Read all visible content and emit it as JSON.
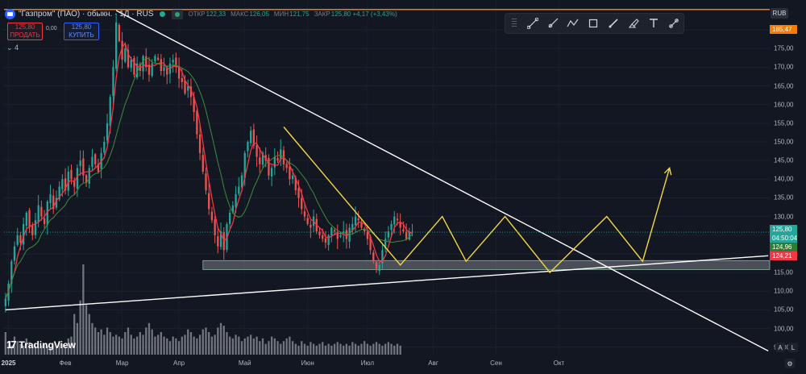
{
  "header": {
    "symbol": "\"Газпром\" (ПАО) · обыкн. · 1Д · RUS",
    "stats": [
      {
        "k": "ОТКР",
        "v": "122,33"
      },
      {
        "k": "МАКС",
        "v": "126,05"
      },
      {
        "k": "МИН",
        "v": "121,75"
      },
      {
        "k": "ЗАКР",
        "v": "125,80 +4,17 (+3,43%)"
      }
    ]
  },
  "trade": {
    "sell_price": "125,80",
    "sell_label": "ПРОДАТЬ",
    "spread": "0,00",
    "buy_price": "125,80",
    "buy_label": "КУПИТЬ"
  },
  "legend_count": "4",
  "currency": "RUB",
  "branding": "TradingView",
  "toolbar_icons": [
    "line-tool-icon",
    "ray-tool-icon",
    "path-tool-icon",
    "rectangle-tool-icon",
    "brush-tool-icon",
    "highlighter-tool-icon",
    "text-tool-icon",
    "measure-tool-icon"
  ],
  "colors": {
    "up": "#26a69a",
    "down": "#ef5350",
    "ma_fast": "#f23645",
    "ma_slow": "#3c8c3c",
    "level": "#f57c00",
    "zigzag": "#f5d742",
    "trend": "#ffffff"
  },
  "price_labels": {
    "level": "185,47",
    "last": "125,80",
    "countdown": "04:50:04",
    "green_label": "124,96",
    "red_label": "124,21"
  },
  "chart_data": {
    "type": "candlestick",
    "y_ticks": [
      "180,00",
      "175,00",
      "170,00",
      "165,00",
      "160,00",
      "155,00",
      "150,00",
      "145,00",
      "140,00",
      "135,00",
      "130,00",
      "125,00",
      "120,00",
      "115,00",
      "110,00",
      "105,00",
      "100,00",
      "95,00"
    ],
    "x_ticks": [
      "2025",
      "Фев",
      "Мар",
      "Апр",
      "Май",
      "Июн",
      "Июл",
      "Авг",
      "Сен",
      "Окт"
    ],
    "ylim": [
      93,
      188
    ],
    "horizontal_level": 185.47,
    "support_zone": [
      115.8,
      118.2
    ],
    "closes": [
      108,
      112,
      118,
      122,
      125,
      123,
      128,
      131,
      127,
      125,
      129,
      133,
      130,
      128,
      134,
      136,
      132,
      135,
      138,
      140,
      137,
      142,
      140,
      138,
      143,
      145,
      141,
      139,
      143,
      146,
      144,
      142,
      147,
      150,
      155,
      162,
      170,
      182,
      177,
      172,
      175,
      170,
      172,
      168,
      171,
      169,
      173,
      170,
      168,
      171,
      173,
      172,
      169,
      170,
      168,
      171,
      172,
      170,
      167,
      166,
      163,
      165,
      162,
      158,
      152,
      147,
      142,
      137,
      132,
      129,
      125,
      122,
      126,
      121,
      128,
      131,
      133,
      136,
      138,
      141,
      147,
      150,
      153,
      149,
      146,
      144,
      147,
      145,
      141,
      143,
      146,
      145,
      148,
      144,
      143,
      140,
      141,
      137,
      135,
      132,
      130,
      128,
      127,
      130,
      126,
      125,
      124,
      123,
      125,
      127,
      126,
      124,
      125,
      126,
      124,
      127,
      128,
      130,
      129,
      127,
      126,
      124,
      121,
      118,
      116,
      117,
      121,
      124,
      126,
      128,
      130,
      129,
      127,
      126,
      124,
      126,
      125.8
    ],
    "volume_levels": [
      0.25,
      0.15,
      0.1,
      0.2,
      0.15,
      0.12,
      0.1,
      0.18,
      0.14,
      0.12,
      0.1,
      0.08,
      0.1,
      0.12,
      0.1,
      0.08,
      0.12,
      0.1,
      0.15,
      0.12,
      0.1,
      0.18,
      0.2,
      0.45,
      0.35,
      0.6,
      1.0,
      0.55,
      0.45,
      0.35,
      0.3,
      0.25,
      0.28,
      0.22,
      0.3,
      0.25,
      0.2,
      0.22,
      0.2,
      0.18,
      0.25,
      0.3,
      0.22,
      0.18,
      0.2,
      0.25,
      0.22,
      0.3,
      0.35,
      0.28,
      0.2,
      0.22,
      0.25,
      0.2,
      0.18,
      0.15,
      0.2,
      0.18,
      0.15,
      0.2,
      0.22,
      0.28,
      0.25,
      0.2,
      0.18,
      0.22,
      0.28,
      0.3,
      0.25,
      0.2,
      0.22,
      0.3,
      0.35,
      0.32,
      0.25,
      0.2,
      0.18,
      0.22,
      0.2,
      0.15,
      0.18,
      0.2,
      0.22,
      0.18,
      0.2,
      0.15,
      0.18,
      0.12,
      0.15,
      0.2,
      0.18,
      0.15,
      0.12,
      0.15,
      0.18,
      0.2,
      0.15,
      0.12,
      0.1,
      0.15,
      0.12,
      0.1,
      0.14,
      0.12,
      0.1,
      0.12,
      0.14,
      0.1,
      0.12,
      0.1,
      0.12,
      0.14,
      0.12,
      0.1,
      0.12,
      0.1,
      0.14,
      0.12,
      0.1,
      0.12,
      0.15,
      0.12,
      0.1,
      0.12,
      0.14,
      0.12,
      0.1,
      0.12,
      0.14,
      0.12,
      0.1,
      0.12,
      0.1
    ],
    "trendlines": [
      {
        "name": "descending",
        "from": {
          "index": 37,
          "price": 185.2
        },
        "to": {
          "index": 255,
          "price": 94
        }
      },
      {
        "name": "ascending",
        "from": {
          "index": 0,
          "price": 105
        },
        "to": {
          "index": 255,
          "price": 119.5
        }
      }
    ],
    "zigzag": [
      {
        "index": 93,
        "price": 154
      },
      {
        "index": 132,
        "price": 117
      },
      {
        "index": 146,
        "price": 130
      },
      {
        "index": 154,
        "price": 118
      },
      {
        "index": 167,
        "price": 130
      },
      {
        "index": 182,
        "price": 115
      },
      {
        "index": 201,
        "price": 130
      },
      {
        "index": 213,
        "price": 118
      },
      {
        "index": 222,
        "price": 143
      }
    ],
    "projection_arrow": {
      "from": {
        "index": 213,
        "price": 118
      },
      "to": {
        "index": 222,
        "price": 143
      }
    }
  }
}
